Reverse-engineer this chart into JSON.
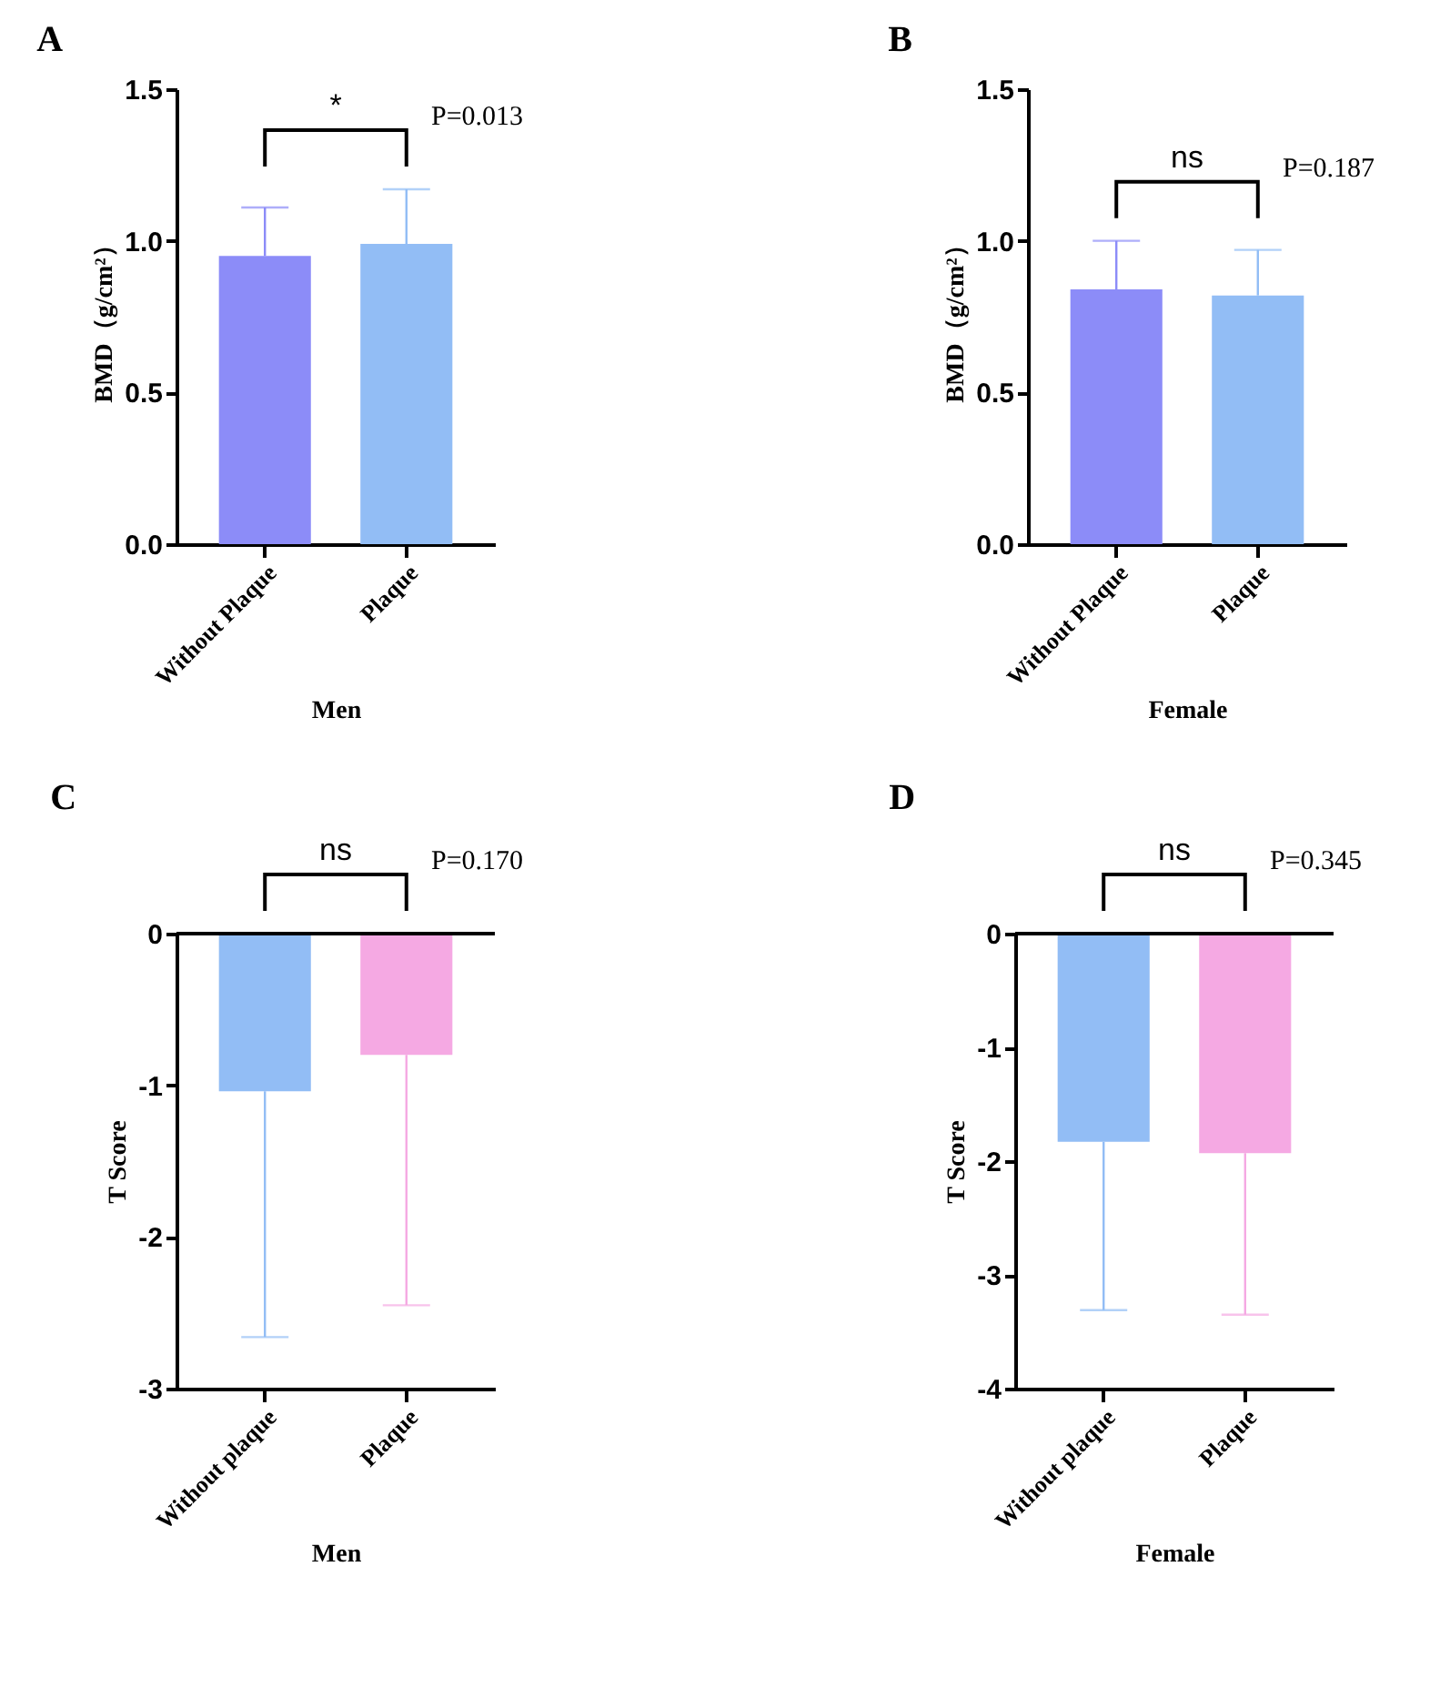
{
  "chart_data": [
    {
      "type": "bar",
      "title": "A",
      "xlabel": "Men",
      "ylabel": "BMD（g/cm²）",
      "categories": [
        "Without Plaque",
        "Plaque"
      ],
      "values": [
        0.95,
        0.99
      ],
      "colors": [
        "#8c8cf8",
        "#92bdf5"
      ],
      "errors": [
        [
          0.95,
          1.11
        ],
        [
          0.99,
          1.17
        ]
      ],
      "ylim": [
        0,
        1.5
      ],
      "yticks": [
        {
          "value": 0,
          "label": "0.0"
        },
        {
          "value": 0.5,
          "label": "0.5"
        },
        {
          "value": 1,
          "label": "1.0"
        },
        {
          "value": 1.5,
          "label": "1.5"
        }
      ],
      "annotations": [
        "*",
        "P=0.013"
      ]
    },
    {
      "type": "bar",
      "title": "B",
      "xlabel": "Female",
      "ylabel": "BMD（g/cm²）",
      "categories": [
        "Without Plaque",
        "Plaque"
      ],
      "values": [
        0.84,
        0.82
      ],
      "colors": [
        "#8c8cf8",
        "#92bdf5"
      ],
      "errors": [
        [
          0.84,
          1.0
        ],
        [
          0.82,
          0.97
        ]
      ],
      "ylim": [
        0,
        1.5
      ],
      "yticks": [
        {
          "value": 0,
          "label": "0.0"
        },
        {
          "value": 0.5,
          "label": "0.5"
        },
        {
          "value": 1,
          "label": "1.0"
        },
        {
          "value": 1.5,
          "label": "1.5"
        }
      ],
      "annotations": [
        "ns",
        "P=0.187"
      ]
    },
    {
      "type": "bar",
      "title": "C",
      "xlabel": "Men",
      "ylabel": "T Score",
      "categories": [
        "Without plaque",
        "Plaque"
      ],
      "values": [
        -1.04,
        -0.8
      ],
      "colors": [
        "#92bdf5",
        "#f5a9e3"
      ],
      "errors": [
        [
          -2.66,
          -1.04
        ],
        [
          -2.45,
          -0.8
        ]
      ],
      "ylim": [
        -3,
        0
      ],
      "yticks": [
        -3,
        -2,
        -1,
        0
      ],
      "annotations": [
        "ns",
        "P=0.170"
      ]
    },
    {
      "type": "bar",
      "title": "D",
      "xlabel": "Female",
      "ylabel": "T Score",
      "categories": [
        "Without plaque",
        "Plaque"
      ],
      "values": [
        -1.83,
        -1.93
      ],
      "colors": [
        "#92bdf5",
        "#f5a9e3"
      ],
      "errors": [
        [
          -3.31,
          -1.83
        ],
        [
          -3.35,
          -1.93
        ]
      ],
      "ylim": [
        -4,
        0
      ],
      "yticks": [
        -4,
        -3,
        -2,
        -1,
        0
      ],
      "annotations": [
        "ns",
        "P=0.345"
      ]
    }
  ]
}
